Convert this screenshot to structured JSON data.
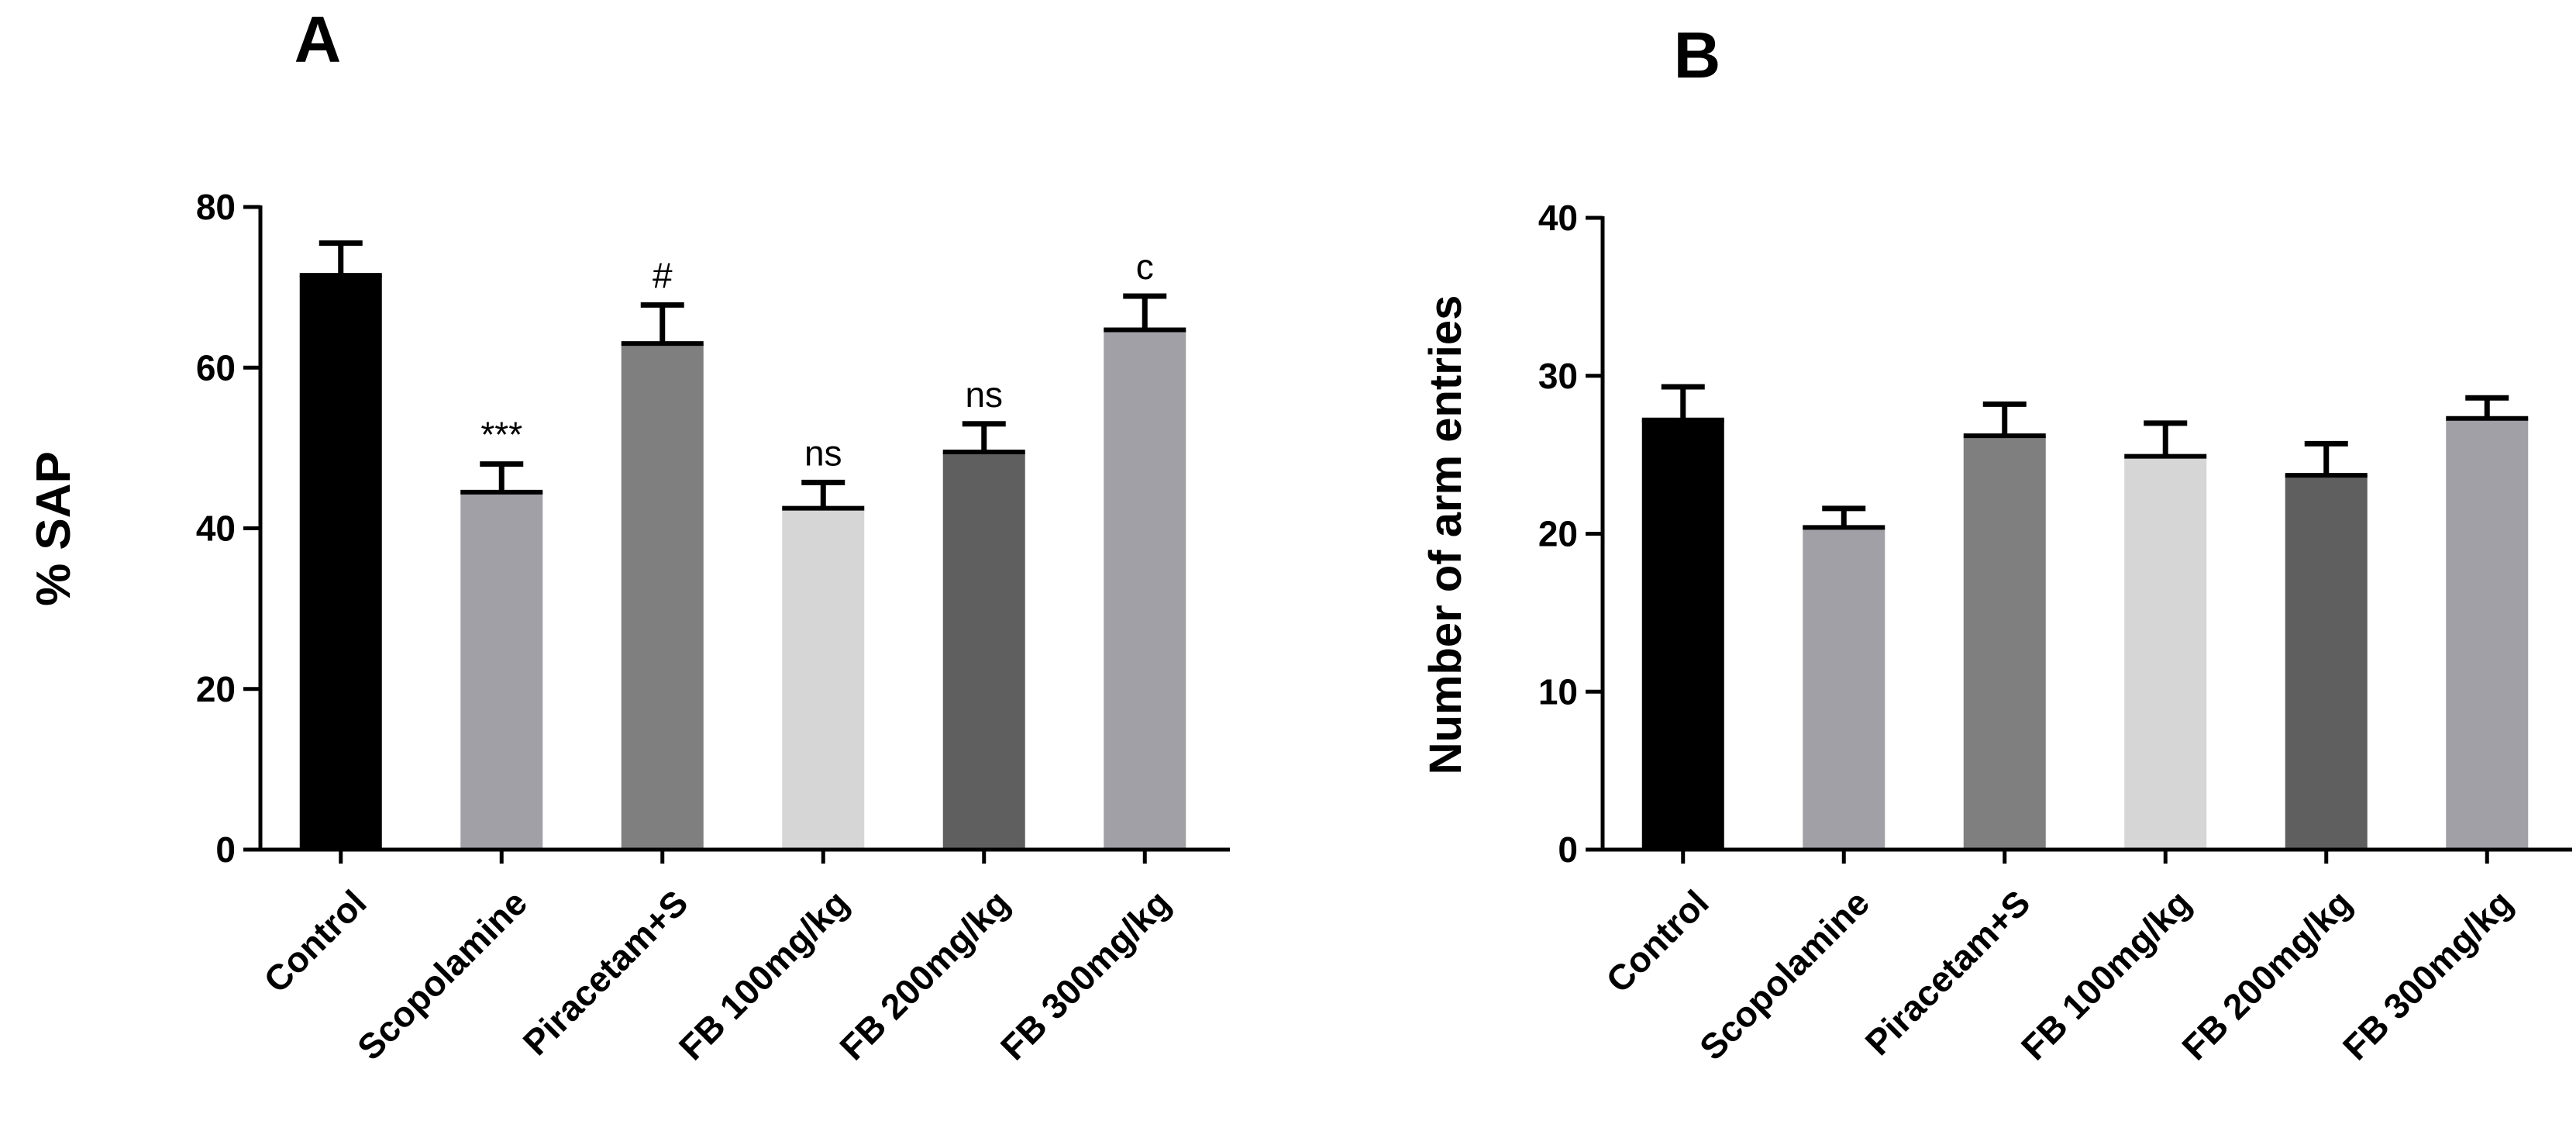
{
  "chart_data": [
    {
      "panel": "A",
      "type": "bar",
      "title": "",
      "xlabel": "",
      "ylabel": "% SAP",
      "ylim": [
        0,
        80
      ],
      "yticks": [
        0,
        20,
        40,
        60,
        80
      ],
      "categories": [
        "Control",
        "Scopolamine",
        "Piracetam+S",
        "FB 100mg/kg",
        "FB 200mg/kg",
        "FB 300mg/kg"
      ],
      "values": [
        71.5,
        44.5,
        63.0,
        42.5,
        49.5,
        64.7
      ],
      "errors": [
        4.0,
        3.5,
        4.8,
        3.2,
        3.5,
        4.2
      ],
      "annotations": [
        "",
        "***",
        "#",
        "ns",
        "ns",
        "c"
      ],
      "colors": [
        "#000000",
        "#a1a0a6",
        "#7f7f7f",
        "#d6d6d6",
        "#5f5f5f",
        "#a1a0a6"
      ],
      "grid": false,
      "legend": "none"
    },
    {
      "panel": "B",
      "type": "bar",
      "title": "",
      "xlabel": "",
      "ylabel": "Number of arm entries",
      "ylim": [
        0,
        40
      ],
      "yticks": [
        0,
        10,
        20,
        30,
        40
      ],
      "categories": [
        "Control",
        "Scopolamine",
        "Piracetam+S",
        "FB 100mg/kg",
        "FB 200mg/kg",
        "FB 300mg/kg"
      ],
      "values": [
        27.2,
        20.4,
        26.2,
        24.9,
        23.7,
        27.3
      ],
      "errors": [
        2.1,
        1.2,
        2.0,
        2.1,
        2.0,
        1.3
      ],
      "annotations": [
        "",
        "",
        "",
        "",
        "",
        ""
      ],
      "colors": [
        "#000000",
        "#a1a0a6",
        "#7f7f7f",
        "#d6d6d6",
        "#5f5f5f",
        "#a1a0a6"
      ],
      "grid": false,
      "legend": "none"
    }
  ]
}
